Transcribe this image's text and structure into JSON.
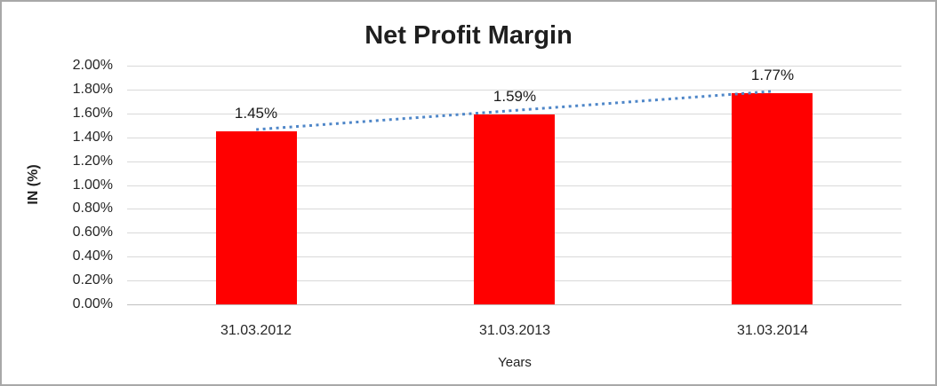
{
  "chart_data": {
    "type": "bar",
    "title": "Net Profit Margin",
    "xlabel": "Years",
    "ylabel": "IN (%)",
    "categories": [
      "31.03.2012",
      "31.03.2013",
      "31.03.2014"
    ],
    "values": [
      1.45,
      1.59,
      1.77
    ],
    "data_labels": [
      "1.45%",
      "1.59%",
      "1.77%"
    ],
    "ylim": [
      0,
      2.0
    ],
    "ytick_step": 0.2,
    "ytick_labels": [
      "0.00%",
      "0.20%",
      "0.40%",
      "0.60%",
      "0.80%",
      "1.00%",
      "1.20%",
      "1.40%",
      "1.60%",
      "1.80%",
      "2.00%"
    ],
    "grid": true,
    "legend": "none",
    "trendline": {
      "type": "linear",
      "style": "dotted",
      "from_category_index": 0,
      "to_category_index": 2,
      "from_value": 1.45,
      "to_value": 1.77
    },
    "colors": {
      "bar": "#FF0000",
      "trendline": "#4E86C8",
      "gridline": "#D9D9D9",
      "baseline": "#C0C0C0",
      "title_text": "#1F1F1F",
      "tick_text": "#262626"
    }
  }
}
